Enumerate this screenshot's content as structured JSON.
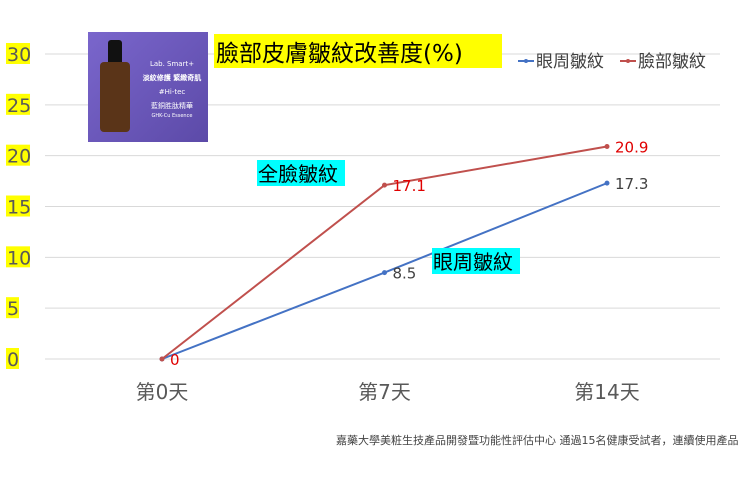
{
  "chart_data": {
    "type": "line",
    "title": "臉部皮膚皺紋改善度(%)",
    "categories": [
      "第0天",
      "第7天",
      "第14天"
    ],
    "ylim": [
      0,
      30
    ],
    "yticks": [
      0,
      5,
      10,
      15,
      20,
      25,
      30
    ],
    "grid": true,
    "legend_position": "top-right",
    "series": [
      {
        "name": "眼周皺紋",
        "values": [
          0,
          8.5,
          17.3
        ],
        "labels": [
          "",
          "8.5",
          "17.3"
        ],
        "color": "#4472c4",
        "label_color": "#404040"
      },
      {
        "name": "臉部皺紋",
        "values": [
          0,
          17.1,
          20.9
        ],
        "labels": [
          "0",
          "17.1",
          "20.9"
        ],
        "color": "#c0504d",
        "label_color": "#e00000"
      }
    ],
    "annotations": [
      "全臉皺紋",
      "眼周皺紋"
    ],
    "footnote": "嘉藥大學美粧生技產品開發暨功能性評估中心 通過15名健康受試者，連續使用產品"
  },
  "product_image": {
    "brand": "Lab. Smart+",
    "line1": "淡紋修護 緊緻奇肌",
    "line2": "#Hi-tec",
    "line3": "藍銅胜肽精華",
    "line4": "GHK-Cu Essence"
  },
  "colors": {
    "highlight_yellow": "#ffff00",
    "highlight_cyan": "#00ffff"
  }
}
